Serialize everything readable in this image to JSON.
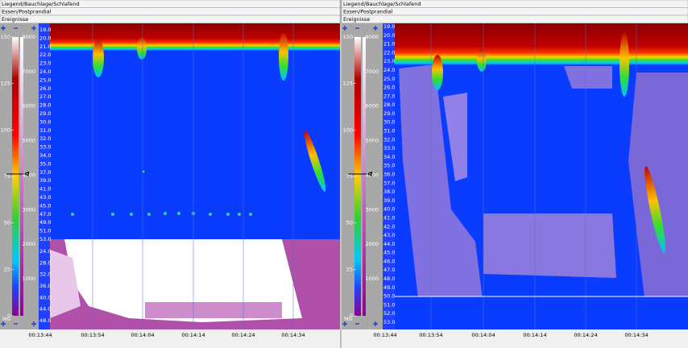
{
  "left": {
    "header": [
      "Liegend/Bauchlage/Schlafend",
      "Essen/Postprandial",
      "Ereignisse"
    ],
    "pressure_ticks": [
      "150",
      "125",
      "100",
      "75",
      "50",
      "25",
      "0"
    ],
    "color_ticks": [
      "8000",
      "7000",
      "6000",
      "5000",
      "4000",
      "3000",
      "2000",
      "1000"
    ],
    "unit": "MG",
    "depth_labels": [
      "19.0",
      "20.0",
      "21.0",
      "22.0",
      "23.0",
      "24.0",
      "25.0",
      "26.0",
      "27.0",
      "28.0",
      "29.0",
      "30.0",
      "31.0",
      "32.0",
      "33.0",
      "34.0",
      "35.0",
      "37.0",
      "39.0",
      "41.0",
      "43.0",
      "45.0",
      "47.0",
      "49.0",
      "51.0",
      "53.0"
    ],
    "lower_depth_labels": [
      "24.0",
      "28.0",
      "32.0",
      "36.0",
      "40.0",
      "44.0",
      "48.0"
    ],
    "time_labels": [
      "00:13:44",
      "00:13:54",
      "00:14:04",
      "00:14:14",
      "00:14:24",
      "00:14:34"
    ]
  },
  "right": {
    "header": [
      "Liegend/Bauchlage/Schlafend",
      "Essen/Postprandial",
      "Ereignisse"
    ],
    "pressure_ticks": [
      "150",
      "125",
      "100",
      "75",
      "50",
      "25",
      "0"
    ],
    "color_ticks": [
      "8000",
      "7000",
      "6000",
      "5000",
      "4000",
      "3000",
      "2000",
      "1000"
    ],
    "unit": "MG",
    "depth_labels": [
      "19.0",
      "20.0",
      "21.0",
      "22.0",
      "23.0",
      "24.0",
      "25.0",
      "26.0",
      "27.0",
      "28.0",
      "29.0",
      "30.0",
      "31.0",
      "32.0",
      "33.0",
      "34.0",
      "35.0",
      "36.0",
      "37.0",
      "38.0",
      "39.0",
      "40.0",
      "41.0",
      "42.0",
      "43.0",
      "44.0",
      "45.0",
      "46.0",
      "47.0",
      "48.0",
      "49.0",
      "50.0",
      "51.0",
      "52.0",
      "53.0"
    ],
    "time_labels": [
      "00:13:44",
      "00:13:54",
      "00:14:04",
      "00:14:14",
      "00:14:24",
      "00:14:34"
    ]
  }
}
